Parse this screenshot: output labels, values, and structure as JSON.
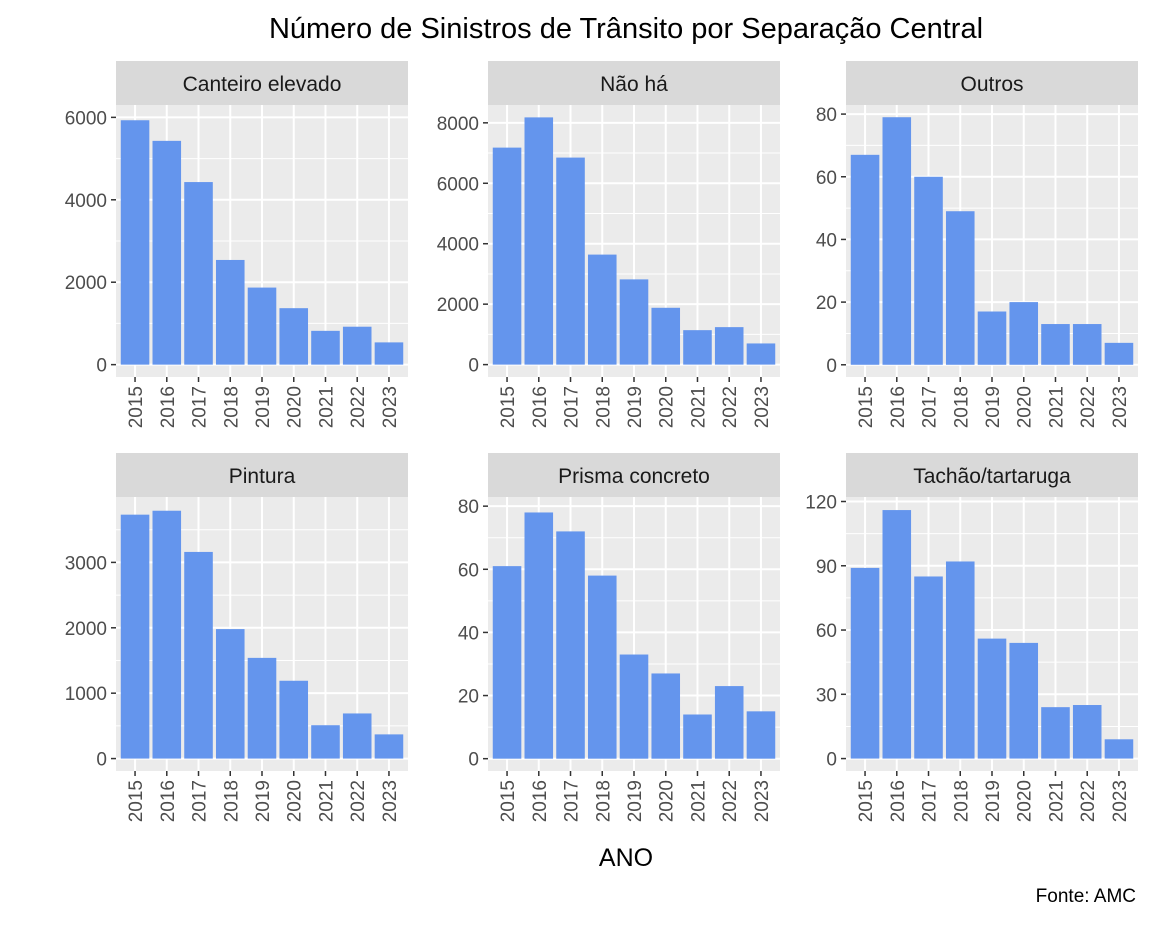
{
  "chart_data": {
    "type": "bar",
    "title": "Número de Sinistros de Trânsito por Separação Central",
    "xlabel": "ANO",
    "ylabel": "",
    "caption": "Fonte: AMC",
    "facet_layout": "3 columns x 2 rows",
    "categories": [
      "2015",
      "2016",
      "2017",
      "2018",
      "2019",
      "2020",
      "2021",
      "2022",
      "2023"
    ],
    "bar_color": "#6495ED",
    "panel_bg": "#EBEBEB",
    "strip_bg": "#D9D9D9",
    "grid": true,
    "facets": [
      {
        "label": "Canteiro elevado",
        "values": [
          5930,
          5430,
          4430,
          2540,
          1870,
          1370,
          820,
          920,
          540
        ],
        "ylim": [
          -300,
          6300
        ],
        "yticks": [
          0,
          2000,
          4000,
          6000
        ],
        "yticks_minor": [
          1000,
          3000,
          5000
        ]
      },
      {
        "label": "Não há",
        "values": [
          7180,
          8180,
          6850,
          3640,
          2820,
          1880,
          1140,
          1240,
          700
        ],
        "ylim": [
          -410,
          8590
        ],
        "yticks": [
          0,
          2000,
          4000,
          6000,
          8000
        ],
        "yticks_minor": [
          1000,
          3000,
          5000,
          7000
        ]
      },
      {
        "label": "Outros",
        "values": [
          67,
          79,
          60,
          49,
          17,
          20,
          13,
          13,
          7
        ],
        "ylim": [
          -3.9,
          82.9
        ],
        "yticks": [
          0,
          20,
          40,
          60,
          80
        ],
        "yticks_minor": [
          10,
          30,
          50,
          70
        ]
      },
      {
        "label": "Pintura",
        "values": [
          3730,
          3790,
          3160,
          1980,
          1540,
          1190,
          510,
          690,
          370
        ],
        "ylim": [
          -190,
          4000
        ],
        "yticks": [
          0,
          1000,
          2000,
          3000
        ],
        "yticks_minor": [
          500,
          1500,
          2500,
          3500
        ]
      },
      {
        "label": "Prisma concreto",
        "values": [
          61,
          78,
          72,
          58,
          33,
          27,
          14,
          23,
          15
        ],
        "ylim": [
          -3.9,
          82.9
        ],
        "yticks": [
          0,
          20,
          40,
          60,
          80
        ],
        "yticks_minor": [
          10,
          30,
          50,
          70
        ]
      },
      {
        "label": "Tachão/tartaruga",
        "values": [
          89,
          116,
          85,
          92,
          56,
          54,
          24,
          25,
          9
        ],
        "ylim": [
          -5.8,
          122.1
        ],
        "yticks": [
          0,
          30,
          60,
          90,
          120
        ],
        "yticks_minor": [
          15,
          45,
          75,
          105
        ]
      }
    ]
  }
}
